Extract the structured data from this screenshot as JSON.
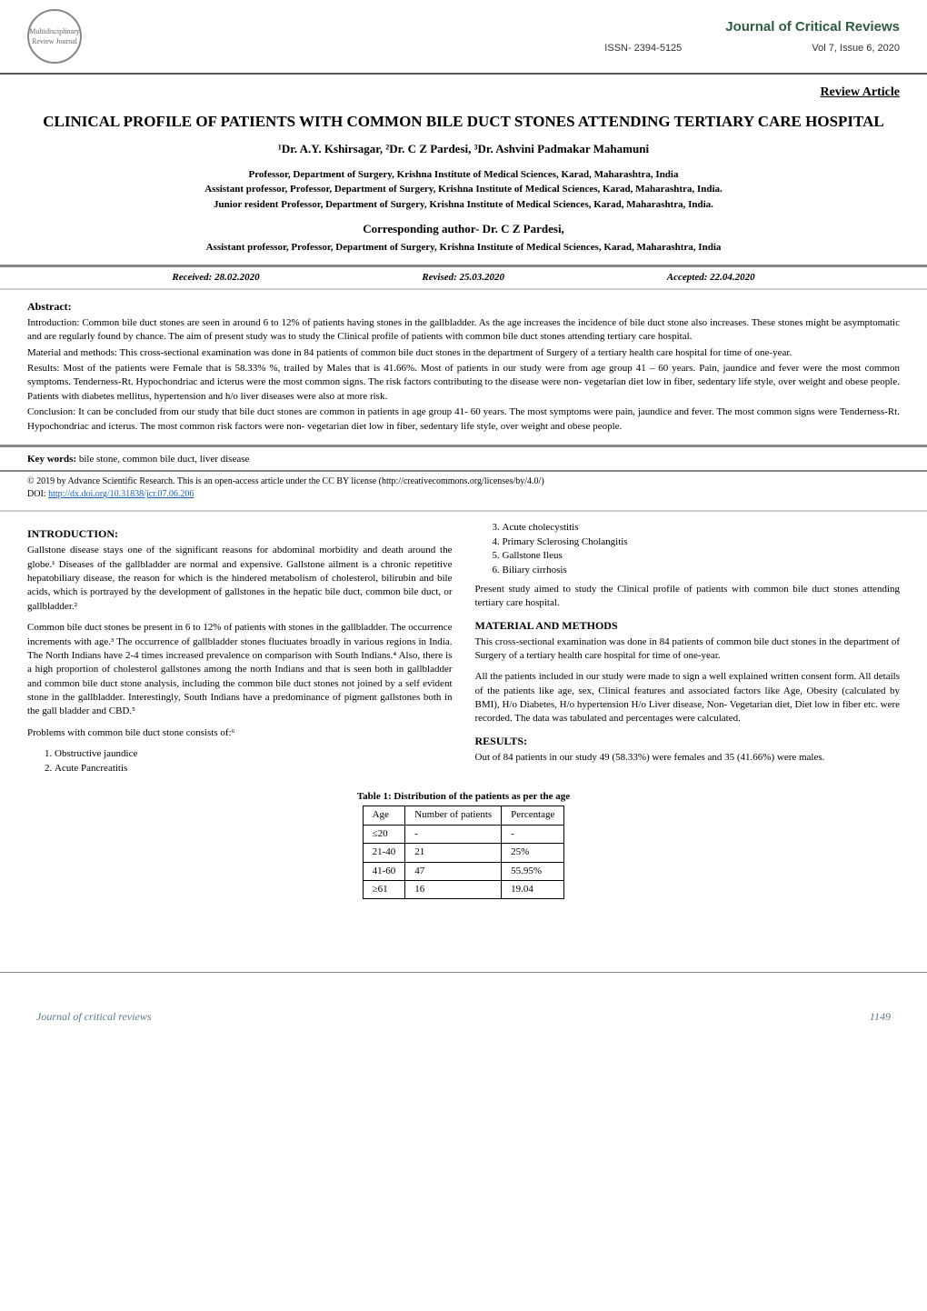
{
  "header": {
    "journal_name": "Journal of Critical Reviews",
    "issn": "ISSN- 2394-5125",
    "vol_issue": "Vol 7, Issue 6, 2020",
    "logo_text": "Multidisciplinary Review Journal"
  },
  "article_type": "Review Article",
  "title": "CLINICAL PROFILE OF PATIENTS WITH COMMON BILE DUCT STONES ATTENDING TERTIARY CARE HOSPITAL",
  "authors": "¹Dr. A.Y. Kshirsagar, ²Dr. C Z Pardesi, ³Dr. Ashvini Padmakar Mahamuni",
  "affiliations": [
    "Professor, Department of Surgery, Krishna Institute of Medical Sciences, Karad, Maharashtra, India",
    "Assistant professor, Professor, Department of Surgery, Krishna Institute of Medical Sciences, Karad, Maharashtra, India.",
    "Junior resident Professor, Department of Surgery, Krishna Institute of Medical Sciences, Karad, Maharashtra, India."
  ],
  "corresponding": {
    "heading": "Corresponding author- Dr. C Z Pardesi,",
    "affil": "Assistant professor, Professor, Department of Surgery, Krishna Institute of Medical Sciences, Karad, Maharashtra, India"
  },
  "dates": {
    "received": "Received: 28.02.2020",
    "revised": "Revised: 25.03.2020",
    "accepted": "Accepted: 22.04.2020"
  },
  "abstract": {
    "heading": "Abstract:",
    "intro": "Introduction: Common bile duct stones are seen in around 6 to 12% of patients having stones in the gallbladder. As the age increases the incidence of bile duct stone also increases. These stones might be asymptomatic and are regularly found by chance. The aim of present study was to study the Clinical profile of patients with common bile duct stones attending tertiary care hospital.",
    "methods": "Material and methods: This cross-sectional examination was done in 84 patients of common bile duct stones in the department of Surgery of a tertiary health care hospital for time of one-year.",
    "results": "Results: Most of the patients were Female that is 58.33% %, trailed by Males that is 41.66%. Most of patients in our study were from age group 41 – 60 years. Pain, jaundice and fever were the most common symptoms. Tenderness-Rt. Hypochondriac and icterus were the most common signs. The risk factors contributing to the disease were non- vegetarian diet low in fiber, sedentary life style, over weight and obese people. Patients with diabetes mellitus, hypertension and h/o liver diseases were also at more risk.",
    "conclusion": "Conclusion: It can be concluded from our study that bile duct stones are common in patients in age group 41- 60 years. The most symptoms were pain, jaundice and fever. The most common signs were Tenderness-Rt. Hypochondriac and icterus. The most common risk factors were non- vegetarian diet low in fiber, sedentary life style, over weight and obese people."
  },
  "keywords": {
    "label": "Key words:",
    "text": "  bile stone, common bile duct, liver disease"
  },
  "copyright": {
    "text": "© 2019 by Advance Scientific Research. This is an open-access article under the CC BY license (http://creativecommons.org/licenses/by/4.0/)",
    "doi_label": "DOI: ",
    "doi_link": "http://dx.doi.org/10.31838/jcr.07.06.206"
  },
  "introduction": {
    "heading": "INTRODUCTION:",
    "p1": "Gallstone disease stays one of the significant reasons for abdominal morbidity and death around the globe.¹ Diseases of the gallbladder are normal and expensive. Gallstone ailment is a chronic repetitive hepatobiliary disease, the reason for which is the hindered metabolism of cholesterol, bilirubin and bile acids, which is portrayed by the development of gallstones in the hepatic bile duct, common bile duct, or gallbladder.²",
    "p2": "Common bile duct stones be present in 6 to 12% of patients with stones in the gallbladder. The occurrence increments with age.³ The occurrence of gallbladder stones fluctuates broadly in various regions in India. The North Indians have 2-4 times increased prevalence on comparison with South Indians.⁴ Also, there is a high proportion of cholesterol gallstones among the north Indians and that is seen both in gallbladder and common bile duct stone analysis, including the common bile duct stones not joined by a self evident stone in the gallbladder. Interestingly, South Indians have a predominance of pigment gallstones both in the gall bladder and CBD.⁵",
    "problems_intro": "Problems with common bile duct stone consists of:⁶",
    "problems": [
      "Obstructive jaundice",
      "Acute Pancreatitis",
      "Acute cholecystitis",
      "Primary Sclerosing Cholangitis",
      "Gallstone Ileus",
      "Biliary cirrhosis"
    ],
    "aim": "Present study aimed to study the Clinical profile of patients with common bile duct stones attending tertiary care hospital."
  },
  "material_methods": {
    "heading": "MATERIAL AND METHODS",
    "p1": "This cross-sectional examination was done in 84 patients of common bile duct stones in the department of Surgery of a tertiary health care hospital for time of one-year.",
    "p2": "All the patients included in our study were made to sign a well explained written consent form. All details of the patients like age, sex, Clinical features and associated factors like Age, Obesity (calculated by BMI), H/o Diabetes, H/o hypertension H/o Liver disease, Non- Vegetarian  diet, Diet low in fiber etc. were recorded. The data was tabulated and percentages were calculated."
  },
  "results": {
    "heading": "RESULTS:",
    "p1": "Out of 84 patients in our study 49 (58.33%) were females and 35 (41.66%) were males."
  },
  "table1": {
    "caption": "Table 1: Distribution of the patients as per the age",
    "columns": [
      "Age",
      "Number of patients",
      "Percentage"
    ],
    "rows": [
      [
        "≤20",
        "-",
        "-"
      ],
      [
        "21-40",
        "21",
        "25%"
      ],
      [
        "41-60",
        "47",
        "55.95%"
      ],
      [
        "≥61",
        "16",
        "19.04"
      ]
    ]
  },
  "footer": {
    "journal": "Journal of critical reviews",
    "page": "1149"
  }
}
